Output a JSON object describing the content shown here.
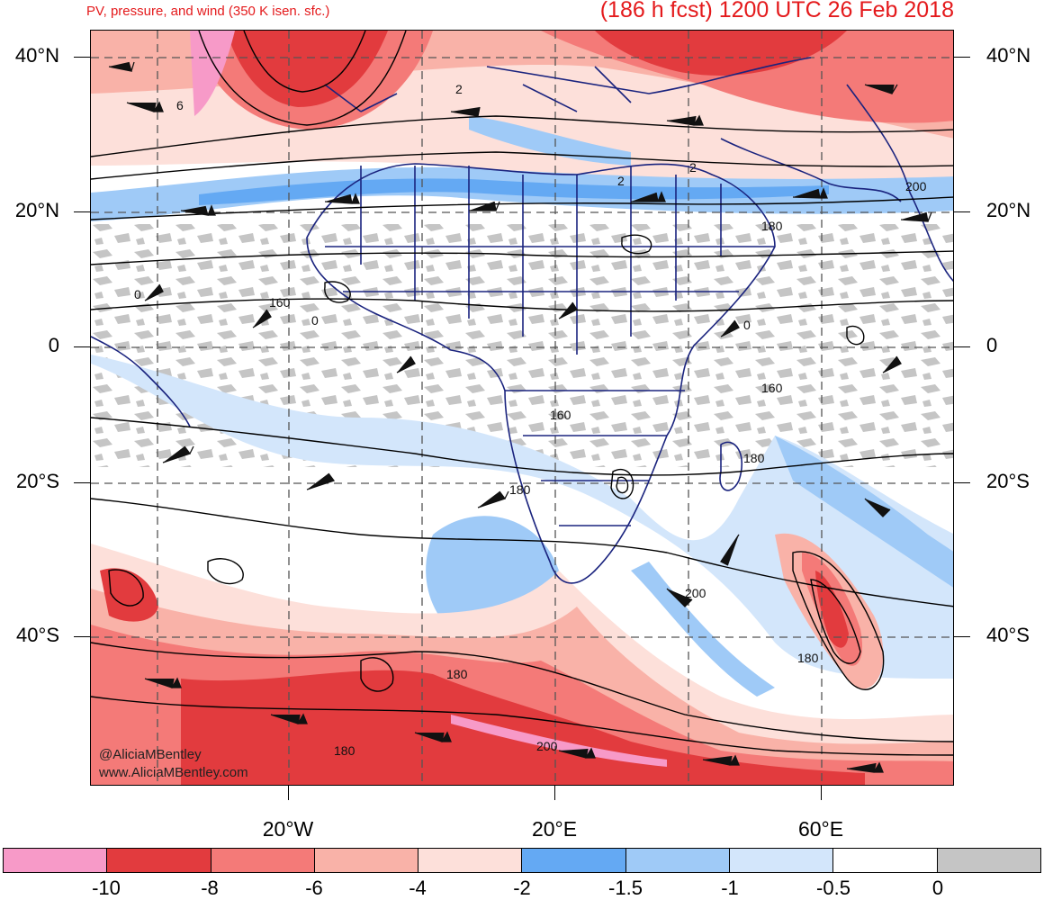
{
  "header": {
    "subtitle": "PV, pressure, and wind (350 K isen. sfc.)",
    "forecast": "(186 h fcst) 1200 UTC 26 Feb 2018"
  },
  "axes": {
    "lat_labels": [
      "40°N",
      "20°N",
      "0",
      "20°S",
      "40°S"
    ],
    "lon_labels": [
      "20°W",
      "20°E",
      "60°E"
    ]
  },
  "colorbar": {
    "labels": [
      "-10",
      "-8",
      "-6",
      "-4",
      "-2",
      "-1.5",
      "-1",
      "-0.5",
      "0"
    ],
    "colors": [
      "#f79ac8",
      "#e23b3e",
      "#f47a78",
      "#f9b2a8",
      "#fde0da",
      "#64a9f3",
      "#9fcaf7",
      "#d3e6fb",
      "#ffffff",
      "#c5c5c5"
    ]
  },
  "contour_labels": [
    "6",
    "2",
    "2",
    "2",
    "200",
    "180",
    "0",
    "160",
    "0",
    "0",
    "160",
    "160",
    "180",
    "180",
    "200",
    "180",
    "180",
    "180",
    "200"
  ],
  "credit": {
    "handle": "@AliciaMBentley",
    "website": "www.AliciaMBentley.com"
  }
}
